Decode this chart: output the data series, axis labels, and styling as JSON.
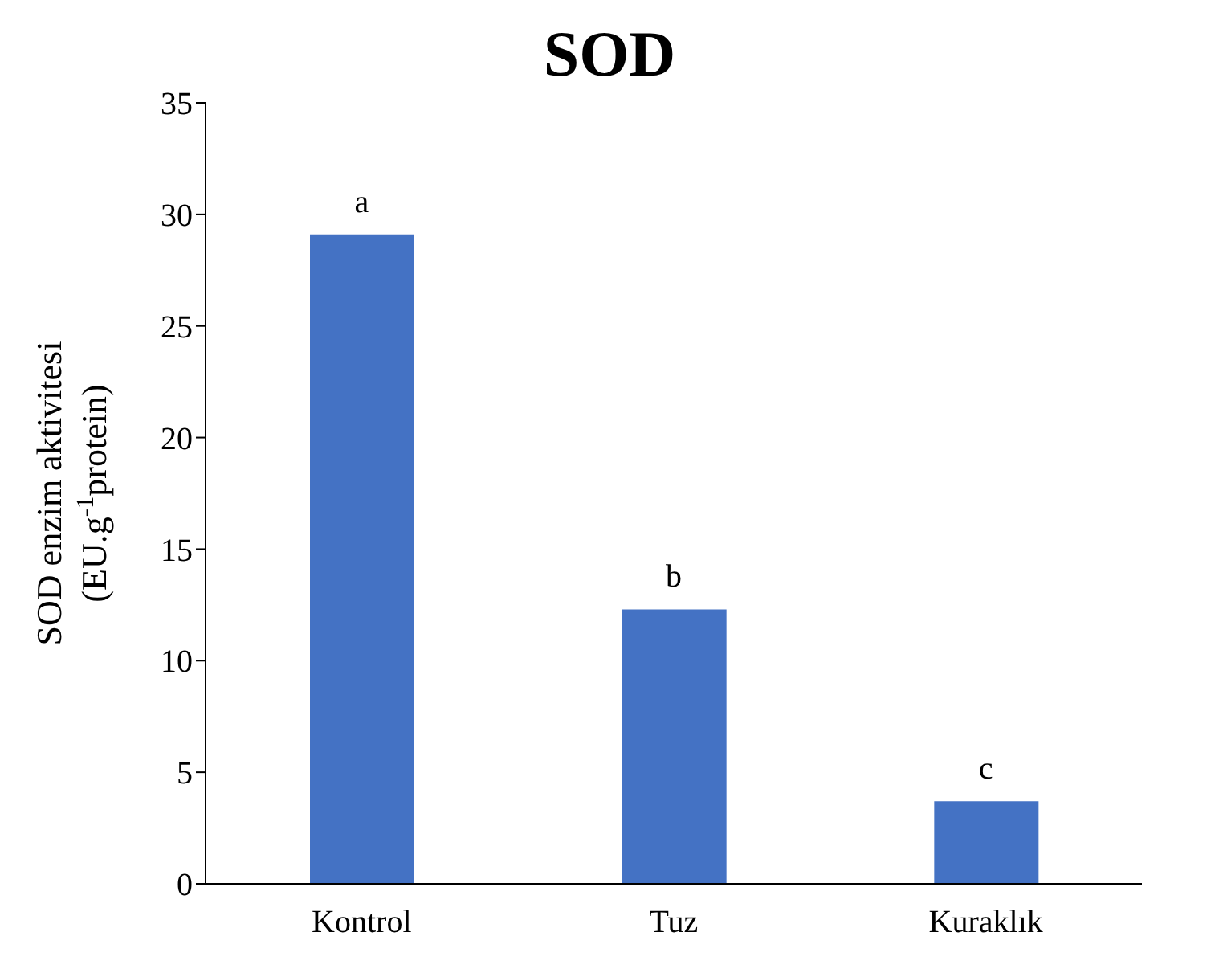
{
  "chart_data": {
    "type": "bar",
    "title": "SOD",
    "ylabel": "SOD enzim aktivitesi\n(EU.g$^{-1}$protein)",
    "categories": [
      "Kontrol",
      "Tuz",
      "Kuraklık"
    ],
    "values": [
      29.1,
      12.3,
      3.7
    ],
    "color": "#4472c4",
    "ylim": [
      0,
      35
    ],
    "yticks": [
      0,
      5,
      10,
      15,
      20,
      25,
      30,
      35
    ],
    "grid": false,
    "legend": false,
    "annotations": [
      {
        "text": "a",
        "x": "Kontrol",
        "y": 29.1
      },
      {
        "text": "b",
        "x": "Tuz",
        "y": 12.3
      },
      {
        "text": "c",
        "x": "Kuraklık",
        "y": 3.7
      }
    ]
  }
}
